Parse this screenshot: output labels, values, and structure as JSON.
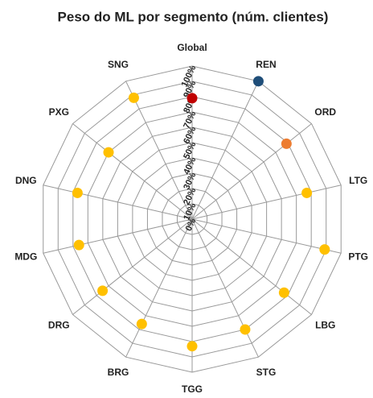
{
  "chart_data": {
    "type": "radar",
    "title": "Peso do ML por segmento (núm. clientes)",
    "categories": [
      "Global",
      "REN",
      "ORD",
      "LTG",
      "PTG",
      "LBG",
      "STG",
      "TGG",
      "BRG",
      "DRG",
      "MDG",
      "DNG",
      "PXG",
      "SNG"
    ],
    "values": [
      79,
      100,
      79,
      77,
      89,
      77,
      80,
      83,
      76,
      75,
      76,
      77,
      70,
      88
    ],
    "colors": [
      "#c00000",
      "#1f4e79",
      "#ed7d31",
      "#ffc000",
      "#ffc000",
      "#ffc000",
      "#ffc000",
      "#ffc000",
      "#ffc000",
      "#ffc000",
      "#ffc000",
      "#ffc000",
      "#ffc000",
      "#ffc000"
    ],
    "ylim": [
      0,
      100
    ],
    "yticks": [
      {
        "value": 0,
        "label": "0%"
      },
      {
        "value": 10,
        "label": "10%"
      },
      {
        "value": 20,
        "label": "20%"
      },
      {
        "value": 30,
        "label": "30%"
      },
      {
        "value": 40,
        "label": "40%"
      },
      {
        "value": 50,
        "label": "50%"
      },
      {
        "value": 60,
        "label": "60%"
      },
      {
        "value": 70,
        "label": "70%"
      },
      {
        "value": 80,
        "label": "80%"
      },
      {
        "value": 90,
        "label": "90%"
      },
      {
        "value": 100,
        "label": "100%"
      }
    ],
    "grid": true
  }
}
